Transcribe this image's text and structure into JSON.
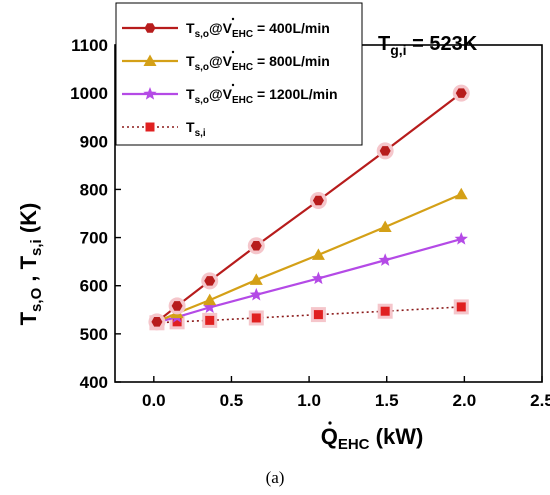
{
  "chart_data": {
    "type": "line",
    "xlabel": {
      "main": "Q",
      "sub": "EHC",
      "unit": " (kW)"
    },
    "ylabel": {
      "a": "T",
      "a_sub": "s,O",
      "sep": " , ",
      "b": "T",
      "b_sub": "s,i",
      "unit": " (K)"
    },
    "xlim": [
      -0.25,
      2.5
    ],
    "ylim": [
      400,
      1100
    ],
    "x_ticks": [
      0.0,
      0.5,
      1.0,
      1.5,
      2.0,
      2.5
    ],
    "x_tick_labels": [
      "0.0",
      "0.5",
      "1.0",
      "1.5",
      "2.0",
      "2.5"
    ],
    "y_ticks": [
      400,
      500,
      600,
      700,
      800,
      900,
      1000,
      1100
    ],
    "y_tick_labels": [
      "400",
      "500",
      "600",
      "700",
      "800",
      "900",
      "1000",
      "1100"
    ],
    "annotation": {
      "main": "T",
      "sub": "g,i",
      "rest": " =  523K"
    },
    "caption": "(a)",
    "legend_position": "top-left",
    "series": [
      {
        "name": "400",
        "legend": {
          "t": "T",
          "sub": "s,o",
          "at": "@",
          "v": "V",
          "vsub": "EHC",
          "rest": " = 400L/min"
        },
        "color": "#b71c1c",
        "marker": "hexagon",
        "line_style": "solid",
        "x": [
          0.02,
          0.15,
          0.36,
          0.66,
          1.06,
          1.49,
          1.98
        ],
        "y": [
          525,
          558,
          610,
          683,
          777,
          880,
          1000
        ]
      },
      {
        "name": "800",
        "legend": {
          "t": "T",
          "sub": "s,o",
          "at": "@",
          "v": "V",
          "vsub": "EHC",
          "rest": " = 800L/min"
        },
        "color": "#d4a017",
        "marker": "triangle",
        "line_style": "solid",
        "x": [
          0.02,
          0.15,
          0.36,
          0.66,
          1.06,
          1.49,
          1.98
        ],
        "y": [
          525,
          543,
          570,
          612,
          664,
          722,
          790
        ]
      },
      {
        "name": "1200",
        "legend": {
          "t": "T",
          "sub": "s,o",
          "at": "@",
          "v": "V",
          "vsub": "EHC",
          "rest": " = 1200L/min"
        },
        "color": "#b44ae6",
        "marker": "star",
        "line_style": "solid",
        "x": [
          0.02,
          0.15,
          0.36,
          0.66,
          1.06,
          1.49,
          1.98
        ],
        "y": [
          524,
          535,
          555,
          581,
          615,
          653,
          697
        ]
      },
      {
        "name": "Tsi",
        "legend": {
          "t": "T",
          "sub": "s,i"
        },
        "color": "#e02020",
        "line_color": "#8b1a1a",
        "marker": "square",
        "line_style": "dotted",
        "x": [
          0.02,
          0.15,
          0.36,
          0.66,
          1.06,
          1.49,
          1.98
        ],
        "y": [
          523,
          525,
          528,
          533,
          540,
          547,
          556
        ]
      }
    ]
  }
}
